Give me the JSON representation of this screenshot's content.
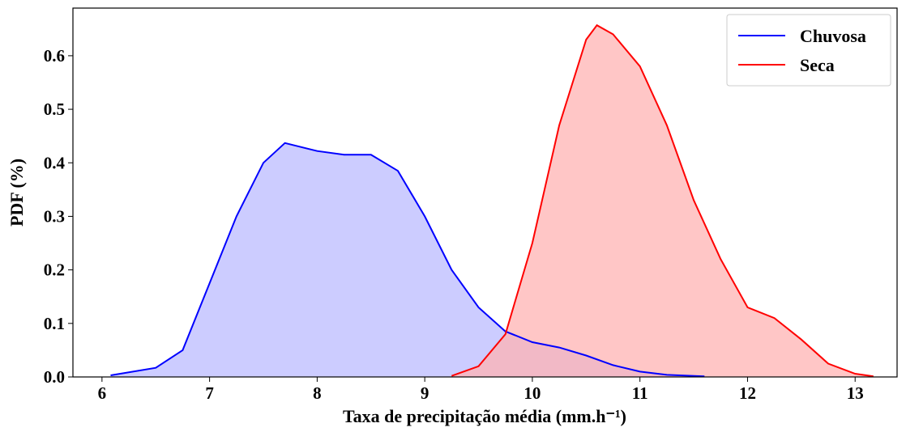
{
  "chart_data": {
    "type": "area",
    "xlabel": "Taxa de precipitação média (mm.h⁻¹)",
    "ylabel": "PDF (%)",
    "xlim": [
      5.73,
      13.39
    ],
    "xticks": [
      6,
      7,
      8,
      9,
      10,
      11,
      12,
      13
    ],
    "ylim": [
      0,
      0.689
    ],
    "yticks": [
      {
        "value": 0,
        "label": "0.0"
      },
      0.1,
      0.2,
      0.3,
      0.4,
      0.5,
      0.6
    ],
    "legend": "upper right",
    "series": [
      {
        "name": "Chuvosa",
        "color": "#0000ff",
        "fill": "#bbbbff",
        "x": [
          6.08,
          6.5,
          6.75,
          7.0,
          7.25,
          7.5,
          7.7,
          8.0,
          8.25,
          8.5,
          8.75,
          9.0,
          9.25,
          9.5,
          9.75,
          10.0,
          10.25,
          10.5,
          10.75,
          11.0,
          11.25,
          11.6
        ],
        "values": [
          0.003,
          0.017,
          0.05,
          0.175,
          0.3,
          0.4,
          0.437,
          0.422,
          0.415,
          0.415,
          0.385,
          0.3,
          0.2,
          0.13,
          0.085,
          0.065,
          0.055,
          0.04,
          0.022,
          0.01,
          0.004,
          0.001
        ]
      },
      {
        "name": "Seca",
        "color": "#ff0000",
        "fill": "#ffb3b3",
        "x": [
          9.25,
          9.5,
          9.75,
          10.0,
          10.25,
          10.5,
          10.6,
          10.75,
          11.0,
          11.25,
          11.5,
          11.75,
          12.0,
          12.25,
          12.5,
          12.75,
          13.0,
          13.17
        ],
        "values": [
          0.002,
          0.02,
          0.08,
          0.25,
          0.47,
          0.63,
          0.657,
          0.64,
          0.58,
          0.47,
          0.33,
          0.22,
          0.13,
          0.11,
          0.07,
          0.025,
          0.006,
          0.001
        ]
      }
    ]
  }
}
